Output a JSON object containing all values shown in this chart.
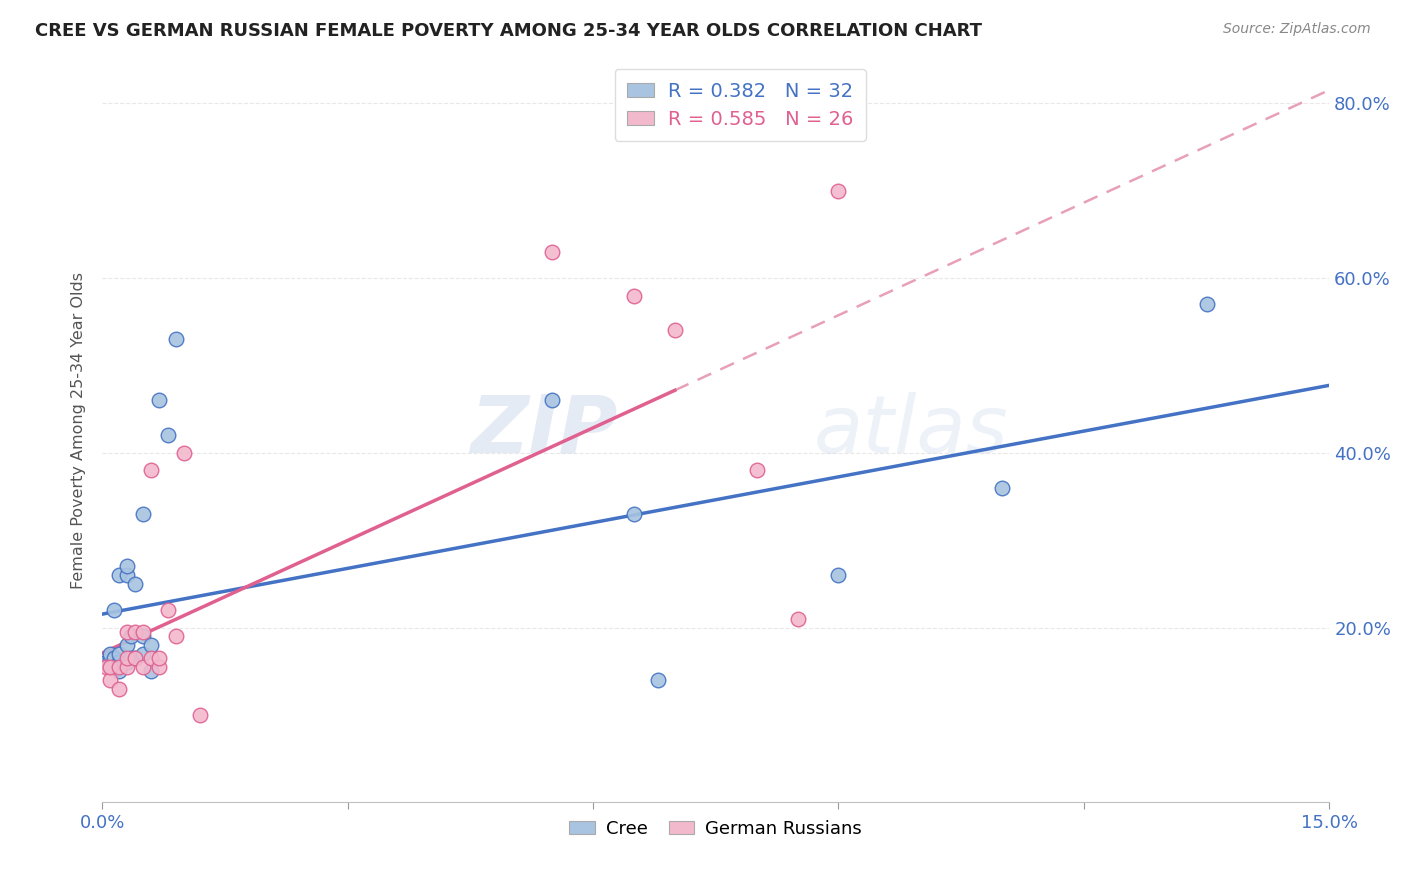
{
  "title": "CREE VS GERMAN RUSSIAN FEMALE POVERTY AMONG 25-34 YEAR OLDS CORRELATION CHART",
  "source": "Source: ZipAtlas.com",
  "ylabel": "Female Poverty Among 25-34 Year Olds",
  "xlim": [
    0.0,
    0.15
  ],
  "ylim": [
    0.0,
    0.85
  ],
  "x_tick_positions": [
    0.0,
    0.03,
    0.06,
    0.09,
    0.12,
    0.15
  ],
  "x_tick_labels": [
    "0.0%",
    "",
    "",
    "",
    "",
    "15.0%"
  ],
  "y_tick_positions": [
    0.0,
    0.2,
    0.4,
    0.6,
    0.8
  ],
  "y_tick_labels_right": [
    "",
    "20.0%",
    "40.0%",
    "60.0%",
    "80.0%"
  ],
  "cree_color": "#a8c4e0",
  "german_color": "#f2b8cc",
  "cree_line_color": "#4472c4",
  "german_line_color": "#e06090",
  "dash_line_color": "#e8a0b8",
  "R_cree": 0.382,
  "N_cree": 32,
  "R_german": 0.585,
  "N_german": 26,
  "cree_x": [
    0.0005,
    0.001,
    0.001,
    0.001,
    0.0015,
    0.0015,
    0.002,
    0.002,
    0.002,
    0.002,
    0.003,
    0.003,
    0.003,
    0.003,
    0.0035,
    0.0035,
    0.004,
    0.004,
    0.005,
    0.005,
    0.005,
    0.006,
    0.006,
    0.007,
    0.008,
    0.009,
    0.055,
    0.065,
    0.068,
    0.09,
    0.11,
    0.135
  ],
  "cree_y": [
    0.16,
    0.155,
    0.165,
    0.17,
    0.165,
    0.22,
    0.15,
    0.16,
    0.17,
    0.26,
    0.16,
    0.18,
    0.26,
    0.27,
    0.165,
    0.19,
    0.165,
    0.25,
    0.17,
    0.19,
    0.33,
    0.15,
    0.18,
    0.46,
    0.42,
    0.53,
    0.46,
    0.33,
    0.14,
    0.26,
    0.36,
    0.57
  ],
  "german_x": [
    0.0005,
    0.001,
    0.001,
    0.002,
    0.002,
    0.003,
    0.003,
    0.003,
    0.004,
    0.004,
    0.005,
    0.005,
    0.006,
    0.006,
    0.007,
    0.007,
    0.008,
    0.009,
    0.01,
    0.012,
    0.055,
    0.065,
    0.07,
    0.08,
    0.085,
    0.09
  ],
  "german_y": [
    0.155,
    0.14,
    0.155,
    0.13,
    0.155,
    0.155,
    0.165,
    0.195,
    0.165,
    0.195,
    0.155,
    0.195,
    0.165,
    0.38,
    0.155,
    0.165,
    0.22,
    0.19,
    0.4,
    0.1,
    0.63,
    0.58,
    0.54,
    0.38,
    0.21,
    0.7
  ],
  "watermark_zip": "ZIP",
  "watermark_atlas": "atlas",
  "background_color": "#ffffff",
  "grid_color": "#e8e8e8",
  "legend_text_color": "#4472c4"
}
